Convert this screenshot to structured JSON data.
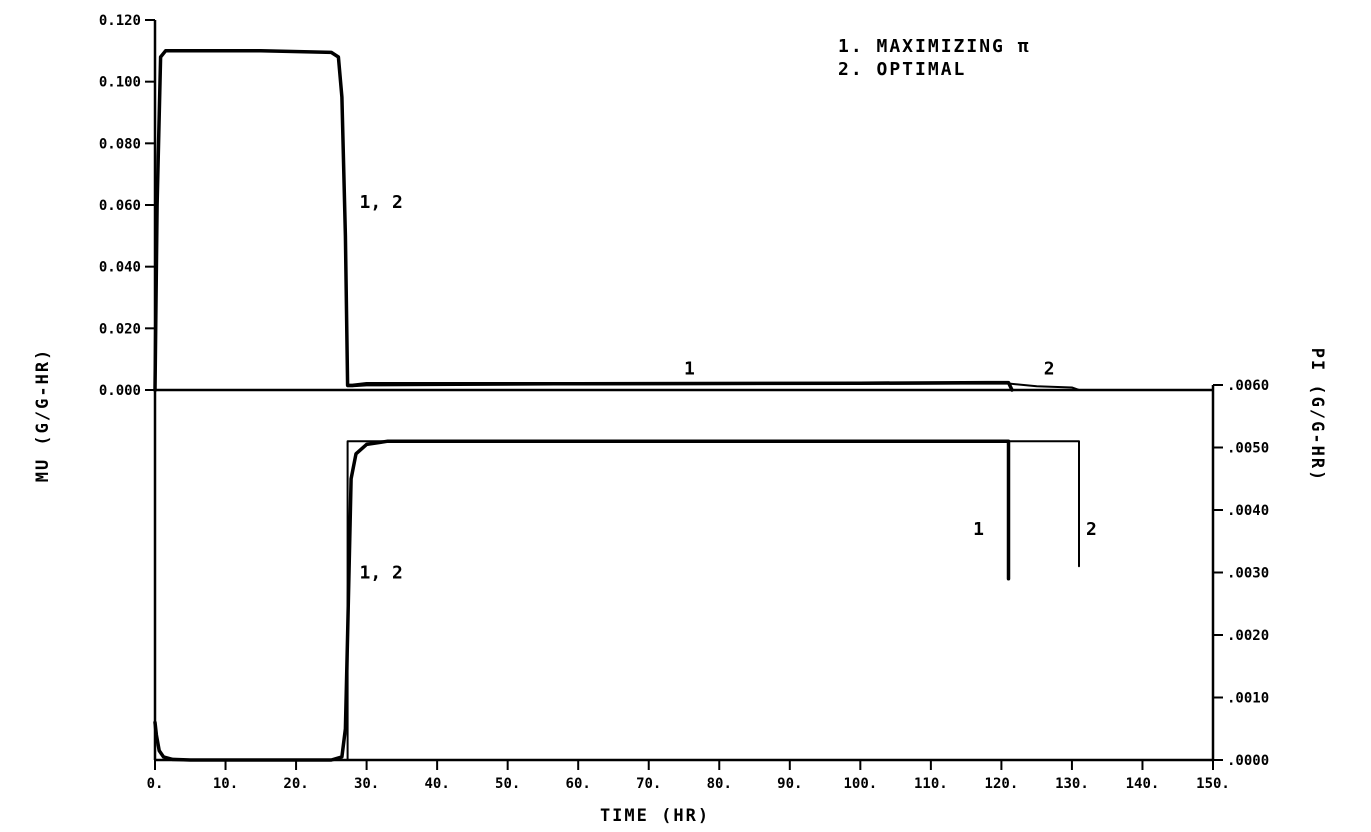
{
  "chart_data": [
    {
      "type": "line",
      "panel": "top",
      "ylabel": "MU  (G/G-HR)",
      "xlabel": "TIME  (HR)",
      "xlim": [
        0,
        150
      ],
      "ylim": [
        0,
        0.12
      ],
      "y_ticks": [
        "0.120",
        "0.100",
        "0.080",
        "0.060",
        "0.040",
        "0.020",
        "0.000"
      ],
      "y_tick_values": [
        0.12,
        0.1,
        0.08,
        0.06,
        0.04,
        0.02,
        0.0
      ],
      "legend": [
        "1.  MAXIMIZING π",
        "2.  OPTIMAL"
      ],
      "legend_position": "top-right",
      "annotations": [
        {
          "text": "1, 2",
          "x": 29,
          "y": 0.061
        },
        {
          "text": "1",
          "x": 75,
          "y": 0.007
        },
        {
          "text": "2",
          "x": 126,
          "y": 0.007
        }
      ],
      "series": [
        {
          "name": "1.  MAXIMIZING π",
          "x": [
            0,
            0.3,
            0.8,
            1.5,
            5,
            15,
            25,
            26,
            26.5,
            27,
            27.3,
            28,
            30,
            60,
            100,
            118,
            121,
            121.5
          ],
          "y": [
            0.0,
            0.06,
            0.108,
            0.11,
            0.11,
            0.11,
            0.1095,
            0.108,
            0.095,
            0.05,
            0.0015,
            0.0015,
            0.002,
            0.002,
            0.0022,
            0.0024,
            0.0024,
            0.0
          ]
        },
        {
          "name": "2.  OPTIMAL",
          "x": [
            0,
            0.3,
            0.8,
            1.5,
            5,
            15,
            25,
            26,
            26.5,
            27,
            27.3,
            28,
            30,
            60,
            100,
            121,
            125,
            130,
            131
          ],
          "y": [
            0.0,
            0.06,
            0.108,
            0.11,
            0.11,
            0.11,
            0.1095,
            0.108,
            0.095,
            0.05,
            0.0012,
            0.0012,
            0.0015,
            0.0018,
            0.002,
            0.0021,
            0.0012,
            0.0008,
            0.0
          ]
        }
      ]
    },
    {
      "type": "line",
      "panel": "bottom",
      "ylabel": "PI  (G/G-HR)",
      "xlabel": "TIME  (HR)",
      "xlim": [
        0,
        150
      ],
      "ylim": [
        0,
        0.006
      ],
      "x_ticks": [
        "0.",
        "10.",
        "20.",
        "30.",
        "40.",
        "50.",
        "60.",
        "70.",
        "80.",
        "90.",
        "100.",
        "110.",
        "120.",
        "130.",
        "140.",
        "150."
      ],
      "x_tick_values": [
        0,
        10,
        20,
        30,
        40,
        50,
        60,
        70,
        80,
        90,
        100,
        110,
        120,
        130,
        140,
        150
      ],
      "y_ticks": [
        ".0060",
        ".0050",
        ".0040",
        ".0030",
        ".0020",
        ".0010",
        ".0000"
      ],
      "y_tick_values": [
        0.006,
        0.005,
        0.004,
        0.003,
        0.002,
        0.001,
        0.0
      ],
      "annotations": [
        {
          "text": "1, 2",
          "x": 29,
          "y": 0.003
        },
        {
          "text": "1",
          "x": 116,
          "y": 0.0037
        },
        {
          "text": "2",
          "x": 132,
          "y": 0.0037
        }
      ],
      "series": [
        {
          "name": "1.  MAXIMIZING π",
          "x": [
            0,
            0.2,
            0.6,
            1.2,
            2.5,
            5,
            15,
            25,
            26.5,
            27,
            27.3,
            27.8,
            28.5,
            30,
            33,
            40,
            80,
            120,
            121,
            121,
            121
          ],
          "y": [
            0.0006,
            0.0004,
            0.00015,
            5e-05,
            1e-05,
            0.0,
            0.0,
            0.0,
            5e-05,
            0.0005,
            0.002,
            0.0045,
            0.0049,
            0.00505,
            0.0051,
            0.0051,
            0.0051,
            0.0051,
            0.0051,
            0.0051,
            0.0029
          ]
        },
        {
          "name": "2.  OPTIMAL",
          "x": [
            27.3,
            27.3,
            131,
            131
          ],
          "y": [
            0.0,
            0.0051,
            0.0051,
            0.0031
          ]
        }
      ]
    }
  ]
}
